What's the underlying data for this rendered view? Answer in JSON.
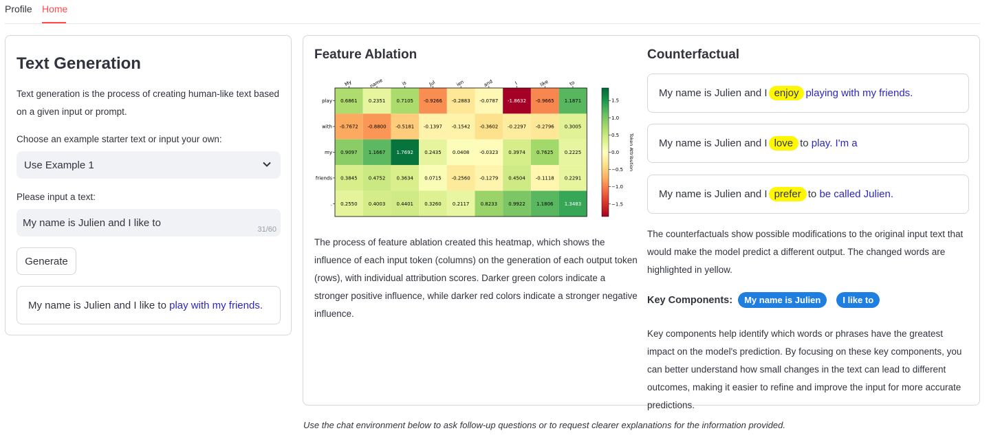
{
  "tabs": [
    {
      "label": "Profile",
      "active": false
    },
    {
      "label": "Home",
      "active": true
    }
  ],
  "left": {
    "title": "Text Generation",
    "description": "Text generation is the process of creating human-like text based on a given input or prompt.",
    "select_label": "Choose an example starter text or input your own:",
    "select_value": "Use Example 1",
    "input_label": "Please input a text:",
    "input_value": "My name is Julien and I like to",
    "input_counter": "31/60",
    "generate_label": "Generate",
    "output_prefix": "My name is Julien and I like to",
    "output_generated": "play with my friends."
  },
  "ablation": {
    "title": "Feature Ablation",
    "description": "The process of feature ablation created this heatmap, which shows the influence of each input token (columns) on the generation of each output token (rows), with individual attribution scores. Darker green colors indicate a stronger positive influence, while darker red colors indicate a stronger negative influence."
  },
  "chart_data": {
    "type": "heatmap",
    "columns": [
      "My",
      "name",
      "is",
      "Jul",
      "ien",
      "and",
      "I",
      "like",
      "to"
    ],
    "rows": [
      "play",
      "with",
      "my",
      "friends",
      "."
    ],
    "values": [
      [
        0.6861,
        0.2351,
        0.7105,
        -0.9266,
        -0.2883,
        -0.0787,
        -1.8632,
        -0.9665,
        1.1871
      ],
      [
        -0.7672,
        -0.88,
        -0.5181,
        -0.1397,
        -0.1542,
        -0.3602,
        -0.2297,
        -0.2796,
        0.3005
      ],
      [
        0.9097,
        1.1667,
        1.7692,
        0.2435,
        0.0408,
        -0.0323,
        0.3974,
        0.7625,
        0.2225
      ],
      [
        0.3845,
        0.4752,
        0.3634,
        0.0715,
        -0.256,
        -0.1279,
        0.4504,
        -0.1118,
        0.2291
      ],
      [
        0.255,
        0.4003,
        0.4401,
        0.326,
        0.2117,
        0.8233,
        0.9922,
        1.1806,
        1.3483
      ]
    ],
    "value_labels": [
      [
        "0.6861",
        "0.2351",
        "0.7105",
        "-0.9266",
        "-0.2883",
        "-0.0787",
        "-1.8632",
        "-0.9665",
        "1.1871"
      ],
      [
        "-0.7672",
        "-0.8800",
        "-0.5181",
        "-0.1397",
        "-0.1542",
        "-0.3602",
        "-0.2297",
        "-0.2796",
        "0.3005"
      ],
      [
        "0.9097",
        "1.1667",
        "1.7692",
        "0.2435",
        "0.0408",
        "-0.0323",
        "0.3974",
        "0.7625",
        "0.2225"
      ],
      [
        "0.3845",
        "0.4752",
        "0.3634",
        "0.0715",
        "-0.2560",
        "-0.1279",
        "0.4504",
        "-0.1118",
        "0.2291"
      ],
      [
        "0.2550",
        "0.4003",
        "0.4401",
        "0.3260",
        "0.2117",
        "0.8233",
        "0.9922",
        "1.1806",
        "1.3483"
      ]
    ],
    "colormap": "RdYlGn",
    "vmin": -1.8632,
    "vmax": 1.8632,
    "colorbar_label": "Token Attribution",
    "colorbar_ticks": [
      1.5,
      1.0,
      0.5,
      0.0,
      -0.5,
      -1.0,
      -1.5
    ],
    "colorbar_tick_labels": [
      "1.5",
      "1.0",
      "0.5",
      "0.0",
      "−0.5",
      "−1.0",
      "−1.5"
    ]
  },
  "counterfactual": {
    "title": "Counterfactual",
    "items": [
      {
        "prefix": "My name is Julien and I",
        "changed": "enjoy",
        "generated": "playing with my friends."
      },
      {
        "prefix": "My name is Julien and I",
        "changed": "love",
        "middle": "to",
        "generated": "play. I'm a"
      },
      {
        "prefix": "My name is Julien and I",
        "changed": "prefer",
        "middle": "to",
        "generated": "be called Julien."
      }
    ],
    "description": "The counterfactuals show possible modifications to the original input text that would make the model predict a different output. The changed words are highlighted in yellow.",
    "key_components_label": "Key Components:",
    "key_components": [
      "My name is Julien",
      "I like to"
    ],
    "key_description": "Key components help identify which words or phrases have the greatest impact on the model's prediction. By focusing on these key components, you can better understand how small changes in the text can lead to different outcomes, making it easier to refine and improve the input for more accurate predictions."
  },
  "footnote": "Use the chat environment below to ask follow-up questions or to request clearer explanations for the information provided.",
  "colors": {
    "accent": "#ff4b4b",
    "generated_text": "#2b26c9",
    "highlight": "#fff700",
    "pill": "#1f7fe0"
  }
}
